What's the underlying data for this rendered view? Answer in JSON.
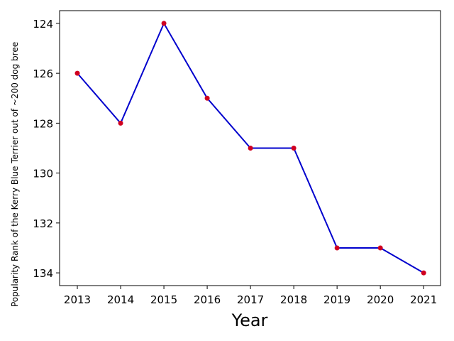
{
  "chart_data": {
    "type": "line",
    "x_label": "Year",
    "y_label": "Popularity Rank of the Kerry Blue Terrier out of ~200 dog bree",
    "x": [
      2013,
      2014,
      2015,
      2016,
      2017,
      2018,
      2019,
      2020,
      2021
    ],
    "series": [
      {
        "color": "#0000cd",
        "marker_color": "#d00020",
        "values": [
          126,
          128,
          124,
          127,
          129,
          129,
          133,
          133,
          134
        ]
      }
    ],
    "xlim": [
      2012.59,
      2021.39
    ],
    "xticks": [
      2013,
      2014,
      2015,
      2016,
      2017,
      2018,
      2019,
      2020,
      2021
    ],
    "ylim": [
      134.51,
      123.49
    ],
    "yticks": [
      124,
      126,
      128,
      130,
      132,
      134
    ]
  }
}
